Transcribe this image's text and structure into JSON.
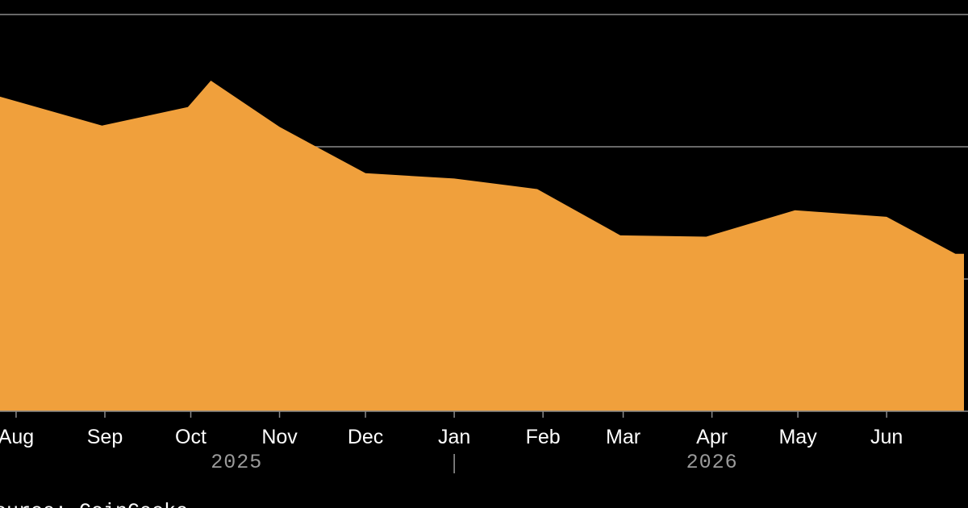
{
  "source_text": "Source: CoinGecko",
  "colors": {
    "background": "#000000",
    "area_fill": "#f0a03c",
    "gridline": "#8a8a8a",
    "axis": "#8a8a8a",
    "tick_text": "#ffffff",
    "year_text": "#9a9a9a"
  },
  "chart_data": {
    "type": "area",
    "grid": true,
    "x_axis": {
      "month_ticks": [
        {
          "label": "Aug",
          "date": "2025-08-01"
        },
        {
          "label": "Sep",
          "date": "2025-09-01"
        },
        {
          "label": "Oct",
          "date": "2025-10-01"
        },
        {
          "label": "Nov",
          "date": "2025-11-01"
        },
        {
          "label": "Dec",
          "date": "2025-12-01"
        },
        {
          "label": "Jan",
          "date": "2026-01-01"
        },
        {
          "label": "Feb",
          "date": "2026-02-01"
        },
        {
          "label": "Mar",
          "date": "2026-03-01"
        },
        {
          "label": "Apr",
          "date": "2026-04-01"
        },
        {
          "label": "May",
          "date": "2026-05-01"
        },
        {
          "label": "Jun",
          "date": "2026-06-01"
        }
      ],
      "year_labels": [
        {
          "label": "2025",
          "date": "2025-10-17"
        },
        {
          "label": "2026",
          "date": "2026-04-01"
        }
      ],
      "year_divider_date": "2026-01-01",
      "range": [
        "2025-07-23",
        "2026-06-28"
      ]
    },
    "y_axis": {
      "range": [
        0,
        3
      ],
      "gridlines": [
        1,
        2,
        3
      ]
    },
    "series": [
      {
        "points": [
          {
            "x": "2025-07-23",
            "y": 2.4
          },
          {
            "x": "2025-08-31",
            "y": 2.16
          },
          {
            "x": "2025-09-30",
            "y": 2.3
          },
          {
            "x": "2025-10-08",
            "y": 2.5
          },
          {
            "x": "2025-11-01",
            "y": 2.15
          },
          {
            "x": "2025-12-01",
            "y": 1.8
          },
          {
            "x": "2026-01-01",
            "y": 1.76
          },
          {
            "x": "2026-01-30",
            "y": 1.68
          },
          {
            "x": "2026-02-28",
            "y": 1.33
          },
          {
            "x": "2026-03-30",
            "y": 1.32
          },
          {
            "x": "2026-04-30",
            "y": 1.52
          },
          {
            "x": "2026-06-01",
            "y": 1.47
          },
          {
            "x": "2026-06-25",
            "y": 1.19
          },
          {
            "x": "2026-06-28",
            "y": 1.19
          }
        ]
      }
    ]
  }
}
